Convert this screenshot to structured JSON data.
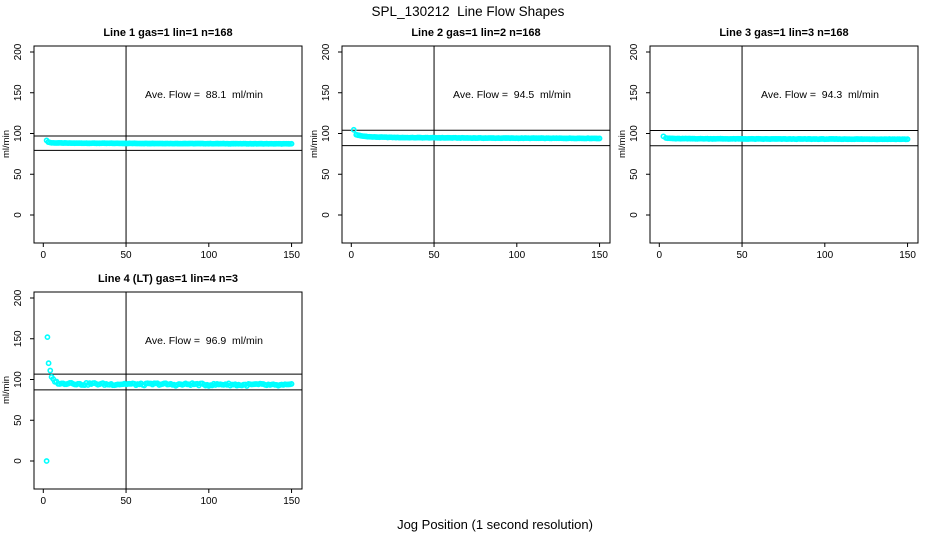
{
  "page": {
    "title": "SPL_130212  Line Flow Shapes",
    "x_axis_label": "Jog Position (1 second resolution)",
    "y_axis_label": "ml/min",
    "point_color": "#00ffff",
    "axis_color": "#000000",
    "background": "#ffffff"
  },
  "chart_data": [
    {
      "type": "scatter",
      "title": "Line 1 gas=1 lin=1 n=168",
      "annotation": "Ave. Flow =  88.1  ml/min",
      "ave_flow_ml_min": 88.1,
      "n": 168,
      "x_ticks": [
        0,
        50,
        100,
        150
      ],
      "y_ticks": [
        0,
        50,
        100,
        150,
        200
      ],
      "xlim": [
        -5,
        157
      ],
      "ylim": [
        -33,
        207
      ],
      "vline_x": 50,
      "hlines": [
        96.9,
        79.3
      ],
      "outliers": [
        [
          2,
          91.5
        ]
      ],
      "band": {
        "step": 1,
        "jitter": 0.15,
        "profile": [
          [
            3,
            89.5
          ],
          [
            5,
            88.5
          ],
          [
            15,
            88.2
          ],
          [
            60,
            87.8
          ],
          [
            150,
            87.3
          ]
        ]
      }
    },
    {
      "type": "scatter",
      "title": "Line 2 gas=1 lin=2 n=168",
      "annotation": "Ave. Flow =  94.5  ml/min",
      "ave_flow_ml_min": 94.5,
      "n": 168,
      "x_ticks": [
        0,
        50,
        100,
        150
      ],
      "y_ticks": [
        0,
        50,
        100,
        150,
        200
      ],
      "xlim": [
        -5,
        157
      ],
      "ylim": [
        -33,
        207
      ],
      "vline_x": 50,
      "hlines": [
        104.0,
        85.1
      ],
      "outliers": [
        [
          1.5,
          104.5
        ]
      ],
      "band": {
        "step": 1,
        "jitter": 0.2,
        "profile": [
          [
            3,
            98.5
          ],
          [
            6,
            97.0
          ],
          [
            12,
            95.8
          ],
          [
            30,
            95.0
          ],
          [
            80,
            94.4
          ],
          [
            150,
            94.0
          ]
        ]
      }
    },
    {
      "type": "scatter",
      "title": "Line 3 gas=1 lin=3 n=168",
      "annotation": "Ave. Flow =  94.3  ml/min",
      "ave_flow_ml_min": 94.3,
      "n": 168,
      "x_ticks": [
        0,
        50,
        100,
        150
      ],
      "y_ticks": [
        0,
        50,
        100,
        150,
        200
      ],
      "xlim": [
        -5,
        157
      ],
      "ylim": [
        -33,
        207
      ],
      "vline_x": 50,
      "hlines": [
        103.7,
        84.9
      ],
      "outliers": [
        [
          2.5,
          96.5
        ]
      ],
      "band": {
        "step": 1,
        "jitter": 0.2,
        "profile": [
          [
            4,
            94.3
          ],
          [
            10,
            93.7
          ],
          [
            60,
            93.3
          ],
          [
            150,
            93.0
          ]
        ]
      }
    },
    {
      "type": "scatter",
      "title": "Line 4 (LT) gas=1 lin=4 n=3",
      "annotation": "Ave. Flow =  96.9  ml/min",
      "ave_flow_ml_min": 96.9,
      "n": 3,
      "x_ticks": [
        0,
        50,
        100,
        150
      ],
      "y_ticks": [
        0,
        50,
        100,
        150,
        200
      ],
      "xlim": [
        -5,
        157
      ],
      "ylim": [
        -33,
        207
      ],
      "vline_x": 50,
      "hlines": [
        106.6,
        87.2
      ],
      "outliers": [
        [
          2,
          0
        ],
        [
          2.5,
          152
        ],
        [
          3.2,
          120
        ],
        [
          4.2,
          111
        ]
      ],
      "band": {
        "step": 1,
        "jitter": 1.4,
        "profile": [
          [
            5,
            102
          ],
          [
            6.5,
            99
          ],
          [
            8,
            96.5
          ],
          [
            11,
            94.5
          ],
          [
            14,
            95.5
          ],
          [
            17,
            96
          ],
          [
            22,
            94
          ],
          [
            30,
            94.8
          ],
          [
            40,
            94
          ],
          [
            50,
            94.6
          ],
          [
            60,
            93.8
          ],
          [
            70,
            94.6
          ],
          [
            80,
            93.6
          ],
          [
            90,
            94.4
          ],
          [
            100,
            93.4
          ],
          [
            110,
            94.2
          ],
          [
            120,
            93.2
          ],
          [
            130,
            93.8
          ],
          [
            140,
            92.8
          ],
          [
            150,
            93.2
          ]
        ]
      }
    }
  ]
}
